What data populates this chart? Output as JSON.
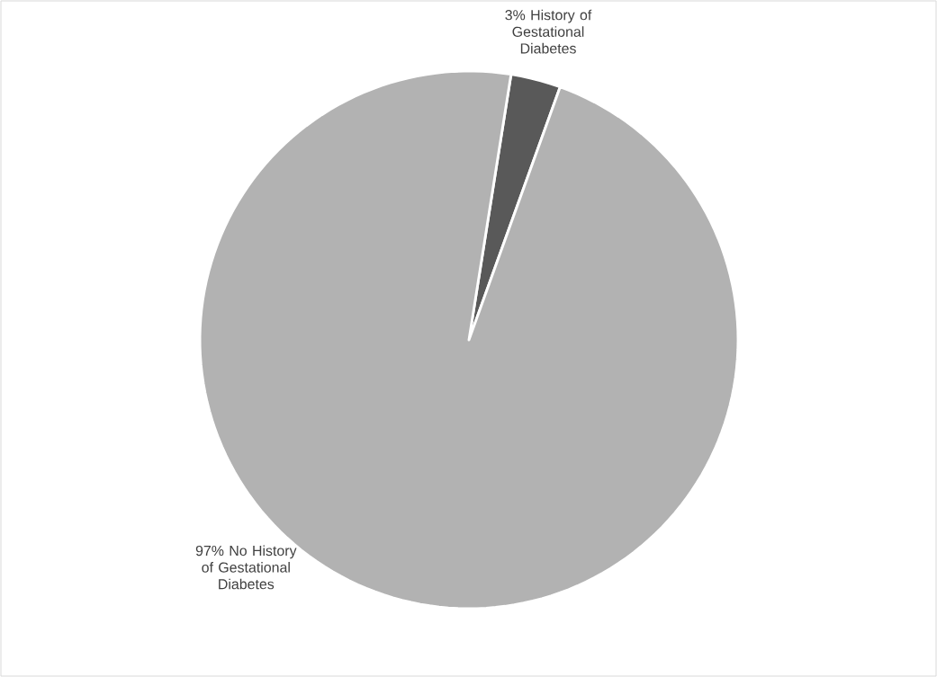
{
  "chart_data": {
    "type": "pie",
    "categories": [
      "History of Gestational Diabetes",
      "No History of Gestational Diabetes"
    ],
    "values": [
      3,
      97
    ],
    "colors": [
      "#595959",
      "#b2b2b2"
    ],
    "value_labels": [
      "3%",
      "97%"
    ]
  }
}
